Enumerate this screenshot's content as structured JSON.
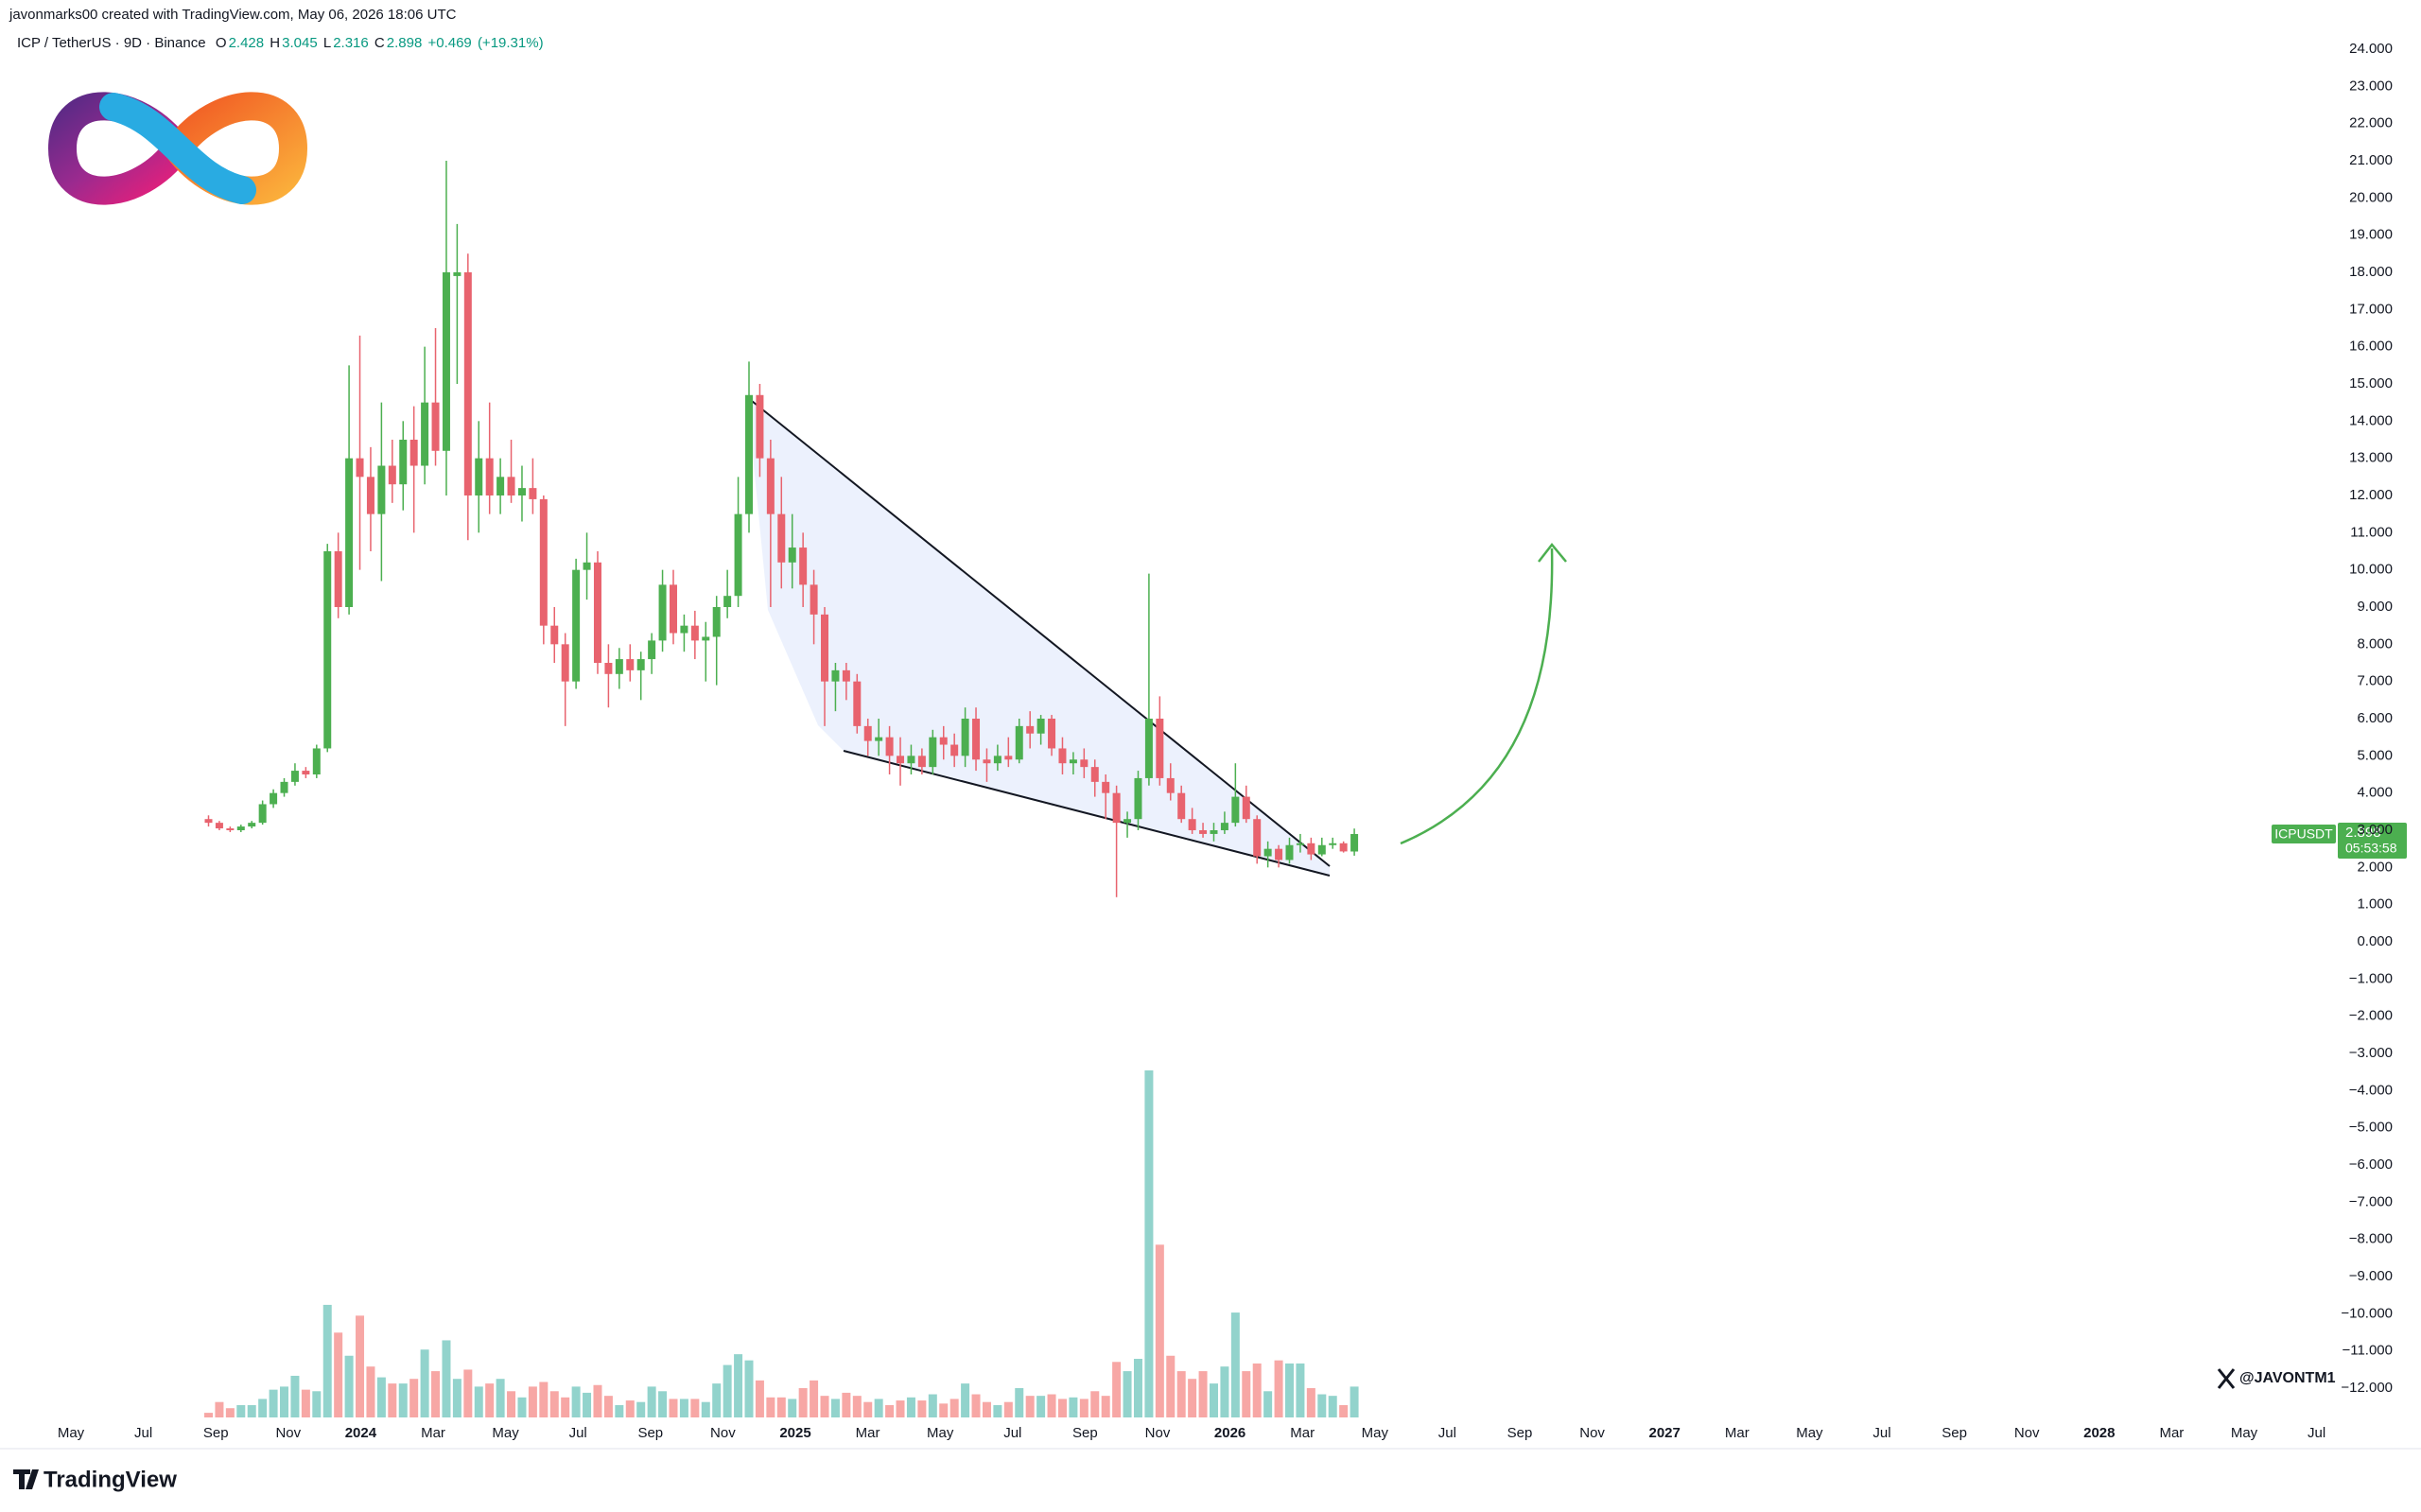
{
  "header": "javonmarks00 created with TradingView.com, May 06, 2026 18:06 UTC",
  "brand": "TradingView",
  "watermark": "@JAVONTM1",
  "chart_data": {
    "type": "candlestick",
    "title": "ICP / TetherUS · 9D · Binance",
    "legend": {
      "o_label": "O",
      "o": 2.428,
      "h_label": "H",
      "h": 3.045,
      "l_label": "L",
      "l": 2.316,
      "c_label": "C",
      "c": 2.898,
      "change": {
        "value": 0.469,
        "label": "+0.469"
      },
      "change_pct": {
        "value": 19.31,
        "label": "(+19.31%)"
      }
    },
    "open": [
      3.3,
      3.2,
      3.05,
      3.0,
      3.1,
      3.2,
      3.7,
      4.0,
      4.3,
      4.6,
      4.5,
      5.2,
      10.5,
      9.0,
      13.0,
      12.5,
      11.5,
      12.8,
      12.3,
      13.5,
      12.8,
      14.5,
      13.2,
      17.9,
      18.0,
      12.0,
      13.0,
      12.0,
      12.5,
      12.0,
      12.2,
      11.9,
      8.5,
      8.0,
      7.0,
      10.0,
      10.2,
      7.5,
      7.2,
      7.6,
      7.3,
      7.6,
      8.1,
      9.6,
      8.3,
      8.5,
      8.1,
      8.2,
      9.0,
      9.3,
      11.5,
      14.7,
      13.0,
      11.5,
      10.2,
      10.6,
      9.6,
      8.8,
      7.0,
      7.3,
      7.0,
      5.8,
      5.4,
      5.5,
      5.0,
      4.8,
      5.0,
      4.7,
      5.5,
      5.3,
      5.0,
      6.0,
      4.9,
      4.8,
      5.0,
      4.9,
      5.8,
      5.6,
      6.0,
      5.2,
      4.8,
      4.9,
      4.7,
      4.3,
      4.0,
      3.2,
      3.3,
      4.4,
      6.0,
      4.4,
      4.0,
      3.3,
      3.0,
      2.9,
      3.0,
      3.2,
      3.9,
      3.3,
      2.3,
      2.5,
      2.2,
      2.6,
      2.65,
      2.35,
      2.6,
      2.65,
      2.428
    ],
    "high": [
      3.4,
      3.25,
      3.1,
      3.15,
      3.25,
      3.8,
      4.1,
      4.4,
      4.8,
      4.7,
      5.3,
      10.7,
      11.0,
      15.5,
      16.3,
      13.3,
      14.5,
      13.5,
      14.0,
      14.4,
      16.0,
      16.5,
      21.0,
      19.3,
      18.5,
      14.0,
      14.5,
      13.0,
      13.5,
      12.8,
      13.0,
      12.0,
      9.0,
      8.3,
      10.3,
      11.0,
      10.5,
      8.0,
      7.9,
      8.0,
      7.8,
      8.3,
      10.0,
      10.0,
      8.8,
      8.9,
      8.6,
      9.3,
      10.0,
      12.5,
      15.6,
      15.0,
      13.5,
      12.5,
      11.5,
      11.0,
      10.0,
      9.0,
      7.5,
      7.5,
      7.2,
      6.0,
      6.0,
      5.8,
      5.5,
      5.3,
      5.2,
      5.7,
      5.8,
      5.6,
      6.3,
      6.3,
      5.2,
      5.3,
      5.5,
      6.0,
      6.2,
      6.1,
      6.1,
      5.5,
      5.1,
      5.2,
      4.9,
      4.5,
      4.2,
      3.5,
      4.6,
      9.9,
      6.6,
      4.8,
      4.2,
      3.6,
      3.2,
      3.2,
      3.5,
      4.8,
      4.2,
      3.4,
      2.7,
      2.6,
      2.8,
      2.9,
      2.8,
      2.8,
      2.8,
      2.7,
      3.045
    ],
    "low": [
      3.1,
      3.0,
      2.95,
      2.95,
      3.05,
      3.15,
      3.6,
      3.9,
      4.2,
      4.4,
      4.4,
      5.1,
      8.7,
      8.8,
      10.0,
      10.5,
      9.7,
      11.8,
      11.6,
      11.0,
      12.3,
      12.8,
      12.0,
      15.0,
      10.8,
      11.0,
      11.5,
      11.5,
      11.8,
      11.3,
      11.5,
      8.0,
      7.5,
      5.8,
      6.8,
      9.2,
      7.2,
      6.3,
      6.8,
      7.0,
      6.5,
      7.2,
      7.8,
      8.0,
      7.8,
      7.6,
      7.0,
      6.9,
      8.7,
      9.0,
      11.0,
      12.5,
      9.0,
      9.5,
      9.5,
      9.0,
      8.0,
      5.8,
      6.2,
      6.5,
      5.6,
      5.0,
      5.0,
      4.5,
      4.2,
      4.5,
      4.5,
      4.5,
      4.9,
      4.7,
      4.7,
      4.6,
      4.3,
      4.6,
      4.7,
      4.8,
      5.2,
      5.3,
      5.0,
      4.5,
      4.5,
      4.4,
      3.9,
      3.3,
      1.2,
      2.8,
      3.0,
      4.2,
      4.2,
      3.8,
      3.2,
      2.9,
      2.8,
      2.7,
      2.9,
      3.1,
      3.2,
      2.1,
      2.0,
      2.0,
      2.1,
      2.4,
      2.2,
      2.3,
      2.5,
      2.4,
      2.316
    ],
    "close": [
      3.2,
      3.05,
      3.0,
      3.1,
      3.2,
      3.7,
      4.0,
      4.3,
      4.6,
      4.5,
      5.2,
      10.5,
      9.0,
      13.0,
      12.5,
      11.5,
      12.8,
      12.3,
      13.5,
      12.8,
      14.5,
      13.2,
      18.0,
      18.0,
      12.0,
      13.0,
      12.0,
      12.5,
      12.0,
      12.2,
      11.9,
      8.5,
      8.0,
      7.0,
      10.0,
      10.2,
      7.5,
      7.2,
      7.6,
      7.3,
      7.6,
      8.1,
      9.6,
      8.3,
      8.5,
      8.1,
      8.2,
      9.0,
      9.3,
      11.5,
      14.7,
      13.0,
      11.5,
      10.2,
      10.6,
      9.6,
      8.8,
      7.0,
      7.3,
      7.0,
      5.8,
      5.4,
      5.5,
      5.0,
      4.8,
      5.0,
      4.7,
      5.5,
      5.3,
      5.0,
      6.0,
      4.9,
      4.8,
      5.0,
      4.9,
      5.8,
      5.6,
      6.0,
      5.2,
      4.8,
      4.9,
      4.7,
      4.3,
      4.0,
      3.2,
      3.3,
      4.4,
      6.0,
      4.4,
      4.0,
      3.3,
      3.0,
      2.9,
      3.0,
      3.2,
      3.9,
      3.3,
      2.3,
      2.5,
      2.2,
      2.6,
      2.65,
      2.35,
      2.6,
      2.65,
      2.43,
      2.898
    ],
    "volume": [
      3,
      10,
      6,
      8,
      8,
      12,
      18,
      20,
      27,
      18,
      17,
      73,
      55,
      40,
      66,
      33,
      26,
      22,
      22,
      25,
      44,
      30,
      50,
      25,
      31,
      20,
      22,
      25,
      17,
      13,
      20,
      23,
      17,
      13,
      20,
      16,
      21,
      14,
      8,
      11,
      10,
      20,
      17,
      12,
      12,
      12,
      10,
      22,
      34,
      41,
      37,
      24,
      13,
      13,
      12,
      19,
      24,
      14,
      12,
      16,
      14,
      10,
      12,
      8,
      11,
      13,
      11,
      15,
      9,
      12,
      22,
      15,
      10,
      8,
      10,
      19,
      14,
      14,
      15,
      12,
      13,
      12,
      17,
      14,
      36,
      30,
      38,
      225,
      112,
      40,
      30,
      25,
      30,
      22,
      33,
      68,
      30,
      35,
      17,
      37,
      35,
      35,
      19,
      15,
      14,
      8,
      20
    ],
    "up_color": "#4caf50",
    "down_color": "#e8636e",
    "volume_up_color": "#92d3cc",
    "volume_down_color": "#f7a7a5",
    "grid": false,
    "ylim": [
      -12.5,
      24.5
    ],
    "yticks": [
      {
        "value": 24,
        "label": "24.000"
      },
      {
        "value": 23,
        "label": "23.000"
      },
      {
        "value": 22,
        "label": "22.000"
      },
      {
        "value": 21,
        "label": "21.000"
      },
      {
        "value": 20,
        "label": "20.000"
      },
      {
        "value": 19,
        "label": "19.000"
      },
      {
        "value": 18,
        "label": "18.000"
      },
      {
        "value": 17,
        "label": "17.000"
      },
      {
        "value": 16,
        "label": "16.000"
      },
      {
        "value": 15,
        "label": "15.000"
      },
      {
        "value": 14,
        "label": "14.000"
      },
      {
        "value": 13,
        "label": "13.000"
      },
      {
        "value": 12,
        "label": "12.000"
      },
      {
        "value": 11,
        "label": "11.000"
      },
      {
        "value": 10,
        "label": "10.000"
      },
      {
        "value": 9,
        "label": "9.000"
      },
      {
        "value": 8,
        "label": "8.000"
      },
      {
        "value": 7,
        "label": "7.000"
      },
      {
        "value": 6,
        "label": "6.000"
      },
      {
        "value": 5,
        "label": "5.000"
      },
      {
        "value": 4,
        "label": "4.000"
      },
      {
        "value": 3,
        "label": "3.000"
      },
      {
        "value": 2,
        "label": "2.000"
      },
      {
        "value": 1,
        "label": "1.000"
      },
      {
        "value": 0,
        "label": "0.000"
      },
      {
        "value": -1,
        "label": "−1.000"
      },
      {
        "value": -2,
        "label": "−2.000"
      },
      {
        "value": -3,
        "label": "−3.000"
      },
      {
        "value": -4,
        "label": "−4.000"
      },
      {
        "value": -5,
        "label": "−5.000"
      },
      {
        "value": -6,
        "label": "−6.000"
      },
      {
        "value": -7,
        "label": "−7.000"
      },
      {
        "value": -8,
        "label": "−8.000"
      },
      {
        "value": -9,
        "label": "−9.000"
      },
      {
        "value": -10,
        "label": "−10.000"
      },
      {
        "value": -11,
        "label": "−11.000"
      },
      {
        "value": -12,
        "label": "−12.000"
      }
    ],
    "x_labels": [
      "May",
      "Jul",
      "Sep",
      "Nov",
      "2024",
      "Mar",
      "May",
      "Jul",
      "Sep",
      "Nov",
      "2025",
      "Mar",
      "May",
      "Jul",
      "Sep",
      "Nov",
      "2026",
      "Mar",
      "May",
      "Jul",
      "Sep",
      "Nov",
      "2027",
      "Mar",
      "May",
      "Jul",
      "Sep",
      "Nov",
      "2028",
      "Mar",
      "May",
      "Jul"
    ],
    "last_price": {
      "symbol": "ICPUSDT",
      "value": 2.898,
      "countdown": "05:53:58"
    }
  }
}
